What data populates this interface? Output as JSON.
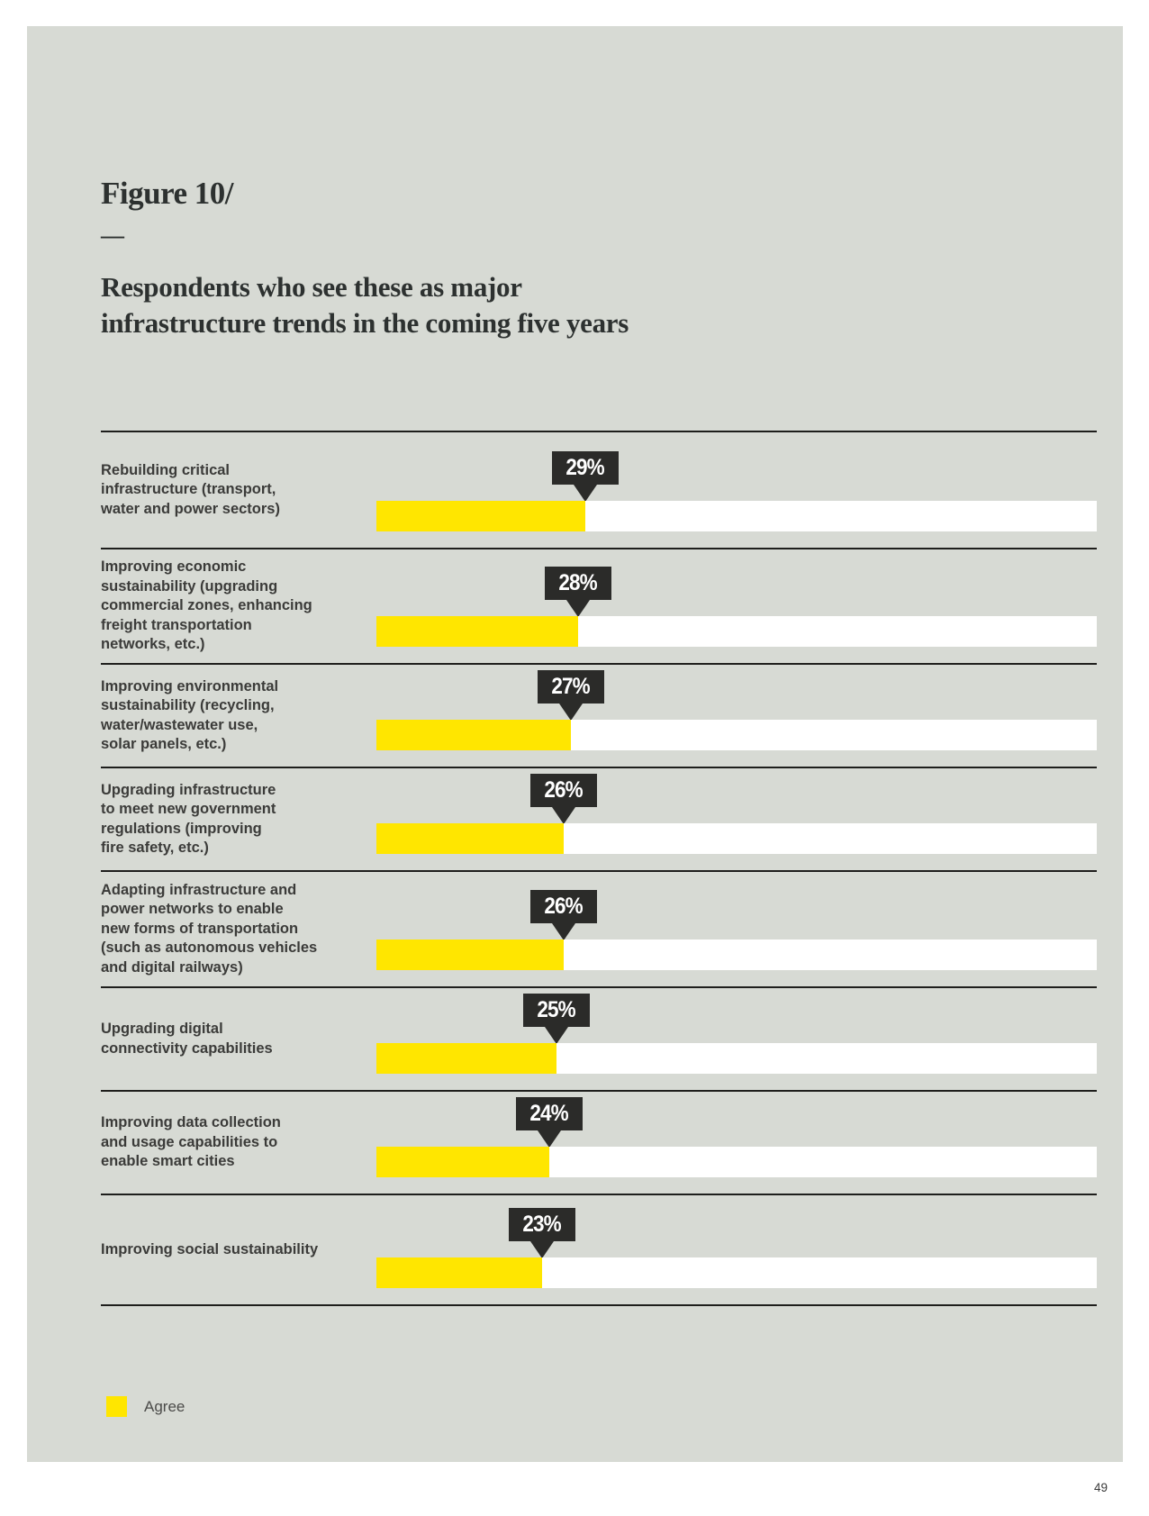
{
  "figure": {
    "label": "Figure 10/",
    "dash": "—",
    "title": "Respondents who see these as major\ninfrastructure trends in the coming five years"
  },
  "chart_data": {
    "type": "bar",
    "orientation": "horizontal",
    "unit": "percent",
    "value_axis_range": [
      0,
      100
    ],
    "grid": false,
    "legend_position": "bottom-left",
    "series_name": "Agree",
    "rows": [
      {
        "label": "Rebuilding critical\ninfrastructure (transport,\nwater and power sectors)",
        "value": 29,
        "value_label": "29%"
      },
      {
        "label": "Improving economic\nsustainability (upgrading\ncommercial zones, enhancing\nfreight transportation\nnetworks, etc.)",
        "value": 28,
        "value_label": "28%"
      },
      {
        "label": "Improving environmental\nsustainability (recycling,\nwater/wastewater use,\nsolar panels, etc.)",
        "value": 27,
        "value_label": "27%"
      },
      {
        "label": "Upgrading infrastructure\nto meet new government\nregulations (improving\nfire safety, etc.)",
        "value": 26,
        "value_label": "26%"
      },
      {
        "label": "Adapting infrastructure and\npower networks to enable\nnew forms of transportation\n(such as autonomous vehicles\nand digital railways)",
        "value": 26,
        "value_label": "26%"
      },
      {
        "label": "Upgrading digital\nconnectivity capabilities",
        "value": 25,
        "value_label": "25%"
      },
      {
        "label": "Improving data collection\nand usage capabilities to\nenable smart cities",
        "value": 24,
        "value_label": "24%"
      },
      {
        "label": "Improving social sustainability",
        "value": 23,
        "value_label": "23%"
      }
    ],
    "colors": {
      "bar_fill": "#ffe600",
      "bar_track": "#ffffff",
      "callout_bg": "#2b2b29",
      "callout_text": "#ffffff",
      "panel_bg": "#d7dad4",
      "separator": "#1e1e1c",
      "label_text": "#3b3b39"
    }
  },
  "legend": {
    "swatch_color": "#ffe600",
    "label": "Agree"
  },
  "page": {
    "number": "49"
  }
}
